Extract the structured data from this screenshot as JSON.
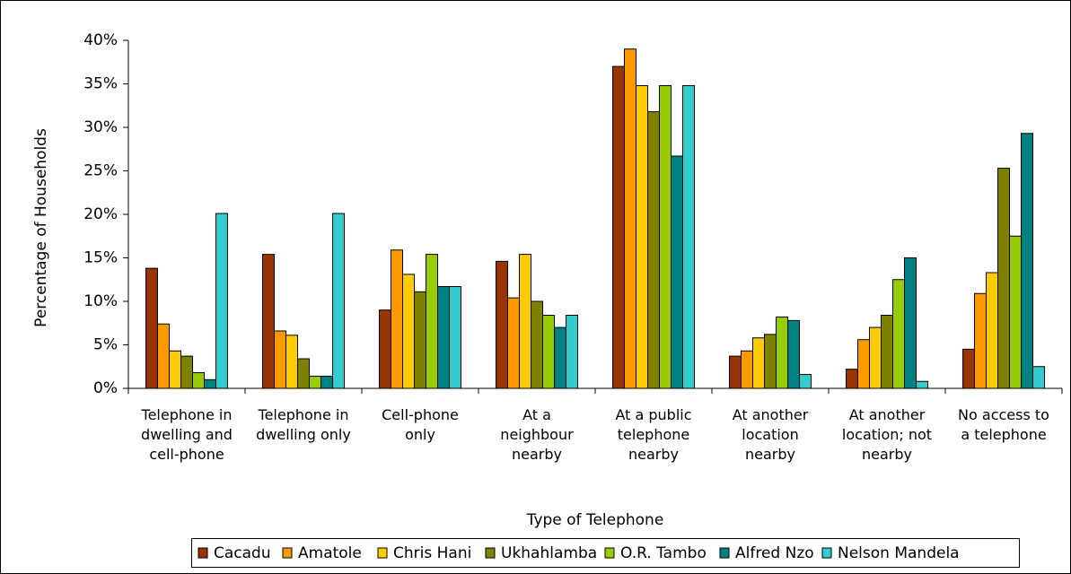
{
  "chart_data": {
    "type": "bar",
    "x_label": "Type of Telephone",
    "y_label": "Percentage of Households",
    "categories": [
      "Telephone in\ndwelling and\ncell-phone",
      "Telephone in\ndwelling only",
      "Cell-phone\nonly",
      "At a\nneighbour\nnearby",
      "At a public\ntelephone\nnearby",
      "At another\nlocation\nnearby",
      "At another\nlocation; not\nnearby",
      "No access to\na telephone"
    ],
    "series": [
      {
        "name": "Cacadu",
        "color": "#993300",
        "values": [
          13.8,
          15.4,
          9.0,
          14.6,
          37.0,
          3.7,
          2.2,
          4.5
        ]
      },
      {
        "name": "Amatole",
        "color": "#ff9900",
        "values": [
          7.4,
          6.6,
          15.9,
          10.4,
          39.0,
          4.3,
          5.6,
          10.9
        ]
      },
      {
        "name": "Chris Hani",
        "color": "#ffcc00",
        "values": [
          4.3,
          6.1,
          13.1,
          15.4,
          34.8,
          5.8,
          7.0,
          13.3
        ]
      },
      {
        "name": "Ukhahlamba",
        "color": "#808000",
        "values": [
          3.7,
          3.4,
          11.1,
          10.0,
          31.8,
          6.2,
          8.4,
          25.3
        ]
      },
      {
        "name": "O.R. Tambo",
        "color": "#99cc00",
        "values": [
          1.8,
          1.4,
          15.4,
          8.4,
          34.8,
          8.2,
          12.5,
          17.5
        ]
      },
      {
        "name": "Alfred Nzo",
        "color": "#008080",
        "values": [
          1.0,
          1.4,
          11.7,
          7.0,
          26.7,
          7.8,
          15.0,
          29.3
        ]
      },
      {
        "name": "Nelson Mandela",
        "color": "#33cccc",
        "values": [
          20.1,
          20.1,
          11.7,
          8.4,
          34.8,
          1.6,
          0.8,
          2.5
        ]
      }
    ],
    "ylim": [
      0,
      40
    ],
    "yticks": [
      {
        "value": 0,
        "label": "0%"
      },
      {
        "value": 5,
        "label": "5%"
      },
      {
        "value": 10,
        "label": "10%"
      },
      {
        "value": 15,
        "label": "15%"
      },
      {
        "value": 20,
        "label": "20%"
      },
      {
        "value": 25,
        "label": "25%"
      },
      {
        "value": 30,
        "label": "30%"
      },
      {
        "value": 35,
        "label": "35%"
      },
      {
        "value": 40,
        "label": "40%"
      }
    ],
    "grid": false,
    "legend": "bottom"
  }
}
